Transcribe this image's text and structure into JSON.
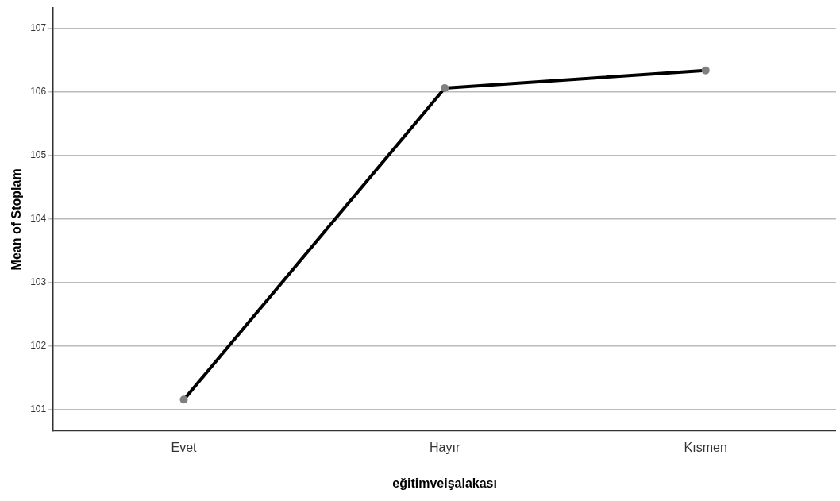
{
  "chart_data": {
    "type": "line",
    "xlabel": "eğitimveişalakası",
    "ylabel": "Mean of Stoplam",
    "categories": [
      "Evet",
      "Hayır",
      "Kısmen"
    ],
    "series": [
      {
        "color": "#000000",
        "values": [
          101.16,
          106.06,
          106.34
        ]
      }
    ],
    "ylim": [
      100.67,
      107.32
    ],
    "yticks": [
      101,
      102,
      103,
      104,
      105,
      106,
      107
    ],
    "grid": "y",
    "legend": false,
    "marker": "circle",
    "line_style": "solid"
  }
}
